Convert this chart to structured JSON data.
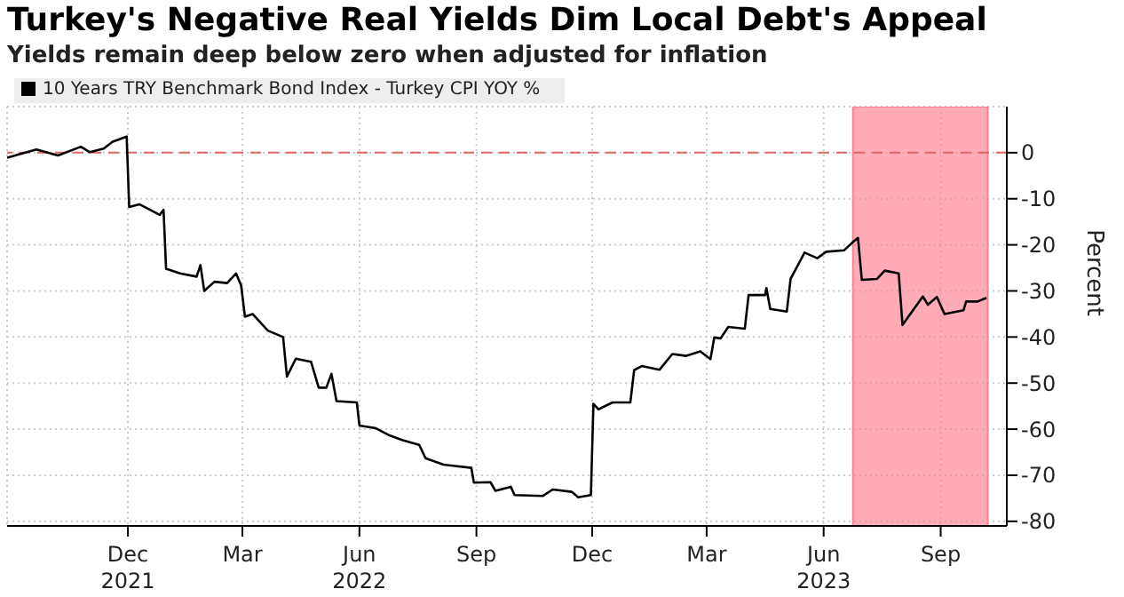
{
  "chart_data": {
    "type": "line",
    "title": "Turkey's Negative Real Yields Dim Local Debt's Appeal",
    "subtitle": "Yields remain deep below zero when adjusted for inflation",
    "ylabel": "Percent",
    "x": [
      "2021-08-28",
      "2021-09-20",
      "2021-10-07",
      "2021-10-25",
      "2021-11-01",
      "2021-11-12",
      "2021-11-19",
      "2021-11-30",
      "2021-12-02",
      "2021-12-10",
      "2021-12-26",
      "2021-12-29",
      "2021-12-31",
      "2022-01-11",
      "2022-01-24",
      "2022-01-27",
      "2022-01-30",
      "2022-02-07",
      "2022-02-17",
      "2022-02-24",
      "2022-02-28",
      "2022-03-03",
      "2022-03-09",
      "2022-03-21",
      "2022-04-02",
      "2022-04-05",
      "2022-04-12",
      "2022-04-24",
      "2022-04-30",
      "2022-05-06",
      "2022-05-10",
      "2022-05-14",
      "2022-05-30",
      "2022-06-01",
      "2022-06-14",
      "2022-06-25",
      "2022-07-05",
      "2022-07-18",
      "2022-07-23",
      "2022-08-06",
      "2022-08-28",
      "2022-08-30",
      "2022-09-12",
      "2022-09-16",
      "2022-09-28",
      "2022-10-01",
      "2022-10-23",
      "2022-10-31",
      "2022-11-15",
      "2022-11-20",
      "2022-11-30",
      "2022-12-02",
      "2022-12-06",
      "2022-12-17",
      "2022-12-31",
      "2023-01-03",
      "2023-01-09",
      "2023-01-23",
      "2023-02-02",
      "2023-02-13",
      "2023-02-24",
      "2023-03-04",
      "2023-03-07",
      "2023-03-12",
      "2023-03-18",
      "2023-03-31",
      "2023-04-03",
      "2023-04-16",
      "2023-04-17",
      "2023-04-20",
      "2023-05-03",
      "2023-05-06",
      "2023-05-17",
      "2023-05-27",
      "2023-06-03",
      "2023-06-17",
      "2023-06-24",
      "2023-06-28",
      "2023-07-01",
      "2023-07-13",
      "2023-07-19",
      "2023-07-30",
      "2023-08-02",
      "2023-08-18",
      "2023-08-22",
      "2023-08-29",
      "2023-09-04",
      "2023-09-19",
      "2023-09-21",
      "2023-09-30",
      "2023-10-07"
    ],
    "series": [
      {
        "name": "10 Years TRY Benchmark Bond Index - Turkey CPI YOY %",
        "color": "#000000",
        "values": [
          -1.1,
          0.7,
          -0.6,
          1.3,
          0.1,
          0.9,
          2.4,
          3.5,
          -11.8,
          -11.2,
          -13.5,
          -12.4,
          -25.2,
          -26.2,
          -26.9,
          -24.4,
          -30.0,
          -28.0,
          -28.3,
          -26.2,
          -28.8,
          -35.6,
          -35.0,
          -38.6,
          -40.0,
          -48.6,
          -44.7,
          -45.4,
          -51.0,
          -51.0,
          -48.0,
          -53.9,
          -54.2,
          -59.2,
          -59.8,
          -61.4,
          -62.4,
          -63.4,
          -66.3,
          -67.7,
          -68.4,
          -71.6,
          -71.5,
          -73.4,
          -72.5,
          -74.3,
          -74.5,
          -73.1,
          -73.6,
          -74.8,
          -74.3,
          -54.5,
          -55.7,
          -54.2,
          -54.2,
          -47.2,
          -46.3,
          -47.1,
          -43.7,
          -44.1,
          -43.1,
          -44.8,
          -40.1,
          -40.3,
          -37.8,
          -38.2,
          -30.9,
          -30.9,
          -29.4,
          -33.9,
          -34.5,
          -27.4,
          -21.7,
          -22.9,
          -21.5,
          -21.2,
          -19.4,
          -18.5,
          -27.6,
          -27.4,
          -25.6,
          -26.2,
          -37.4,
          -31.2,
          -33.0,
          -31.3,
          -35.0,
          -34.2,
          -32.3,
          -32.3,
          -31.5
        ]
      }
    ],
    "xlim": [
      "2021-08-28",
      "2023-10-23"
    ],
    "xticks": [
      {
        "value": "2021-12-01",
        "label": "Dec\n2021"
      },
      {
        "value": "2022-03-01",
        "label": "Mar"
      },
      {
        "value": "2022-06-01",
        "label": "Jun\n2022"
      },
      {
        "value": "2022-09-01",
        "label": "Sep"
      },
      {
        "value": "2022-12-01",
        "label": "Dec"
      },
      {
        "value": "2023-03-01",
        "label": "Mar"
      },
      {
        "value": "2023-06-01",
        "label": "Jun\n2023"
      },
      {
        "value": "2023-09-01",
        "label": "Sep"
      }
    ],
    "ylim": [
      -81,
      10
    ],
    "yticks": [
      0,
      -10,
      -20,
      -30,
      -40,
      -50,
      -60,
      -70,
      -80
    ],
    "ref_lines": [
      {
        "axis": "y",
        "value": 0,
        "color": "#e06666",
        "line_style": "dashed"
      }
    ],
    "bands": [
      {
        "axis": "x",
        "from": "2023-06-24",
        "to": "2023-10-08",
        "color": "#ff8090"
      }
    ],
    "grid": true,
    "legend": "top left",
    "marker": "none",
    "line_style": "solid"
  }
}
